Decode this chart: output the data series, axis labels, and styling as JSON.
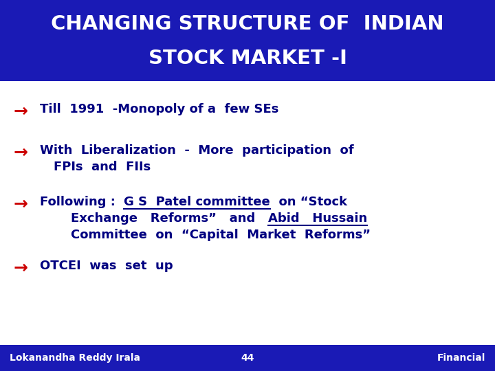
{
  "title_line1": "CHANGING STRUCTURE OF  INDIAN",
  "title_line2": "STOCK MARKET -I",
  "title_bg_color": "#1a1ab5",
  "title_text_color": "#ffffff",
  "bg_color": "#ffffff",
  "arrow_color": "#cc0000",
  "bullet_text_color": "#000080",
  "footer_bg_color": "#1a1ab5",
  "footer_text_color": "#ffffff",
  "footer_left": "Lokanandha Reddy Irala",
  "footer_center": "44",
  "footer_right": "Financial",
  "title_fontsize": 21,
  "bullet_fontsize": 13,
  "arrow_fontsize": 18,
  "footer_fontsize": 10
}
